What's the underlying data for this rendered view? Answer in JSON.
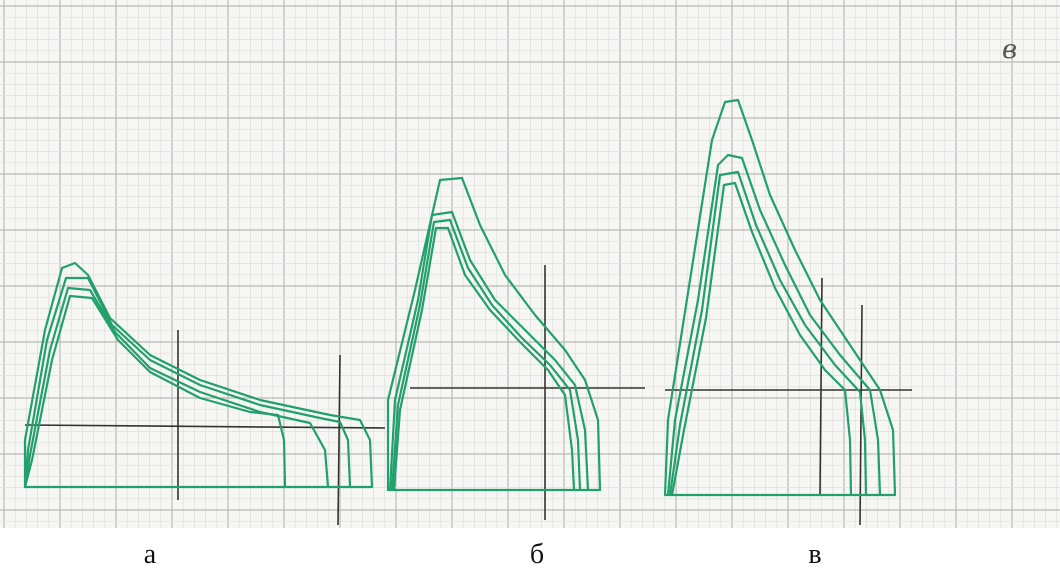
{
  "captions": [
    "а",
    "б",
    "в"
  ],
  "handwritten_mark": "в"
}
